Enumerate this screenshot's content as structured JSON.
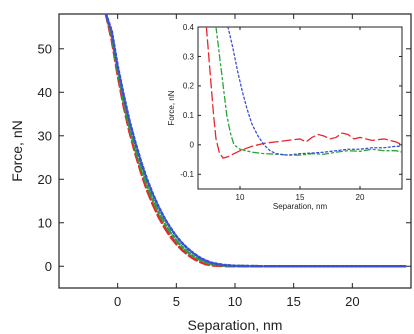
{
  "chart_data": [
    {
      "type": "line",
      "role": "main",
      "xlabel": "Separation, nm",
      "ylabel": "Force, nN",
      "xlim": [
        -5,
        25
      ],
      "ylim": [
        -5,
        58
      ],
      "xticks": [
        0,
        5,
        10,
        15,
        20
      ],
      "yticks": [
        0,
        10,
        20,
        30,
        40,
        50
      ],
      "grid": false,
      "series": [
        {
          "color": "#e8262b",
          "dash": "long-dash",
          "x": [
            -1,
            -0.5,
            0,
            0.5,
            1,
            1.5,
            2,
            2.5,
            3,
            3.5,
            4,
            4.5,
            5,
            5.5,
            6,
            6.5,
            7,
            7.5,
            8,
            9,
            10,
            12,
            15,
            18,
            21,
            24.5
          ],
          "y": [
            58,
            52,
            44,
            37,
            31,
            26,
            21.5,
            17.5,
            14.2,
            11.3,
            8.9,
            6.8,
            5.1,
            3.7,
            2.6,
            1.7,
            1.0,
            0.5,
            0.2,
            0.05,
            0.02,
            0,
            0,
            0,
            0,
            0
          ]
        },
        {
          "color": "#2ba33b",
          "dash": "dash-dot",
          "x": [
            -1,
            -0.5,
            0,
            0.5,
            1,
            1.5,
            2,
            2.5,
            3,
            3.5,
            4,
            4.5,
            5,
            5.5,
            6,
            6.5,
            7,
            7.5,
            8,
            9,
            10,
            12,
            15,
            18,
            21,
            24.5
          ],
          "y": [
            58,
            53,
            45,
            38,
            32,
            27,
            22.5,
            18.6,
            15.2,
            12.3,
            9.8,
            7.7,
            5.9,
            4.4,
            3.2,
            2.2,
            1.5,
            0.9,
            0.5,
            0.15,
            0.05,
            0,
            0,
            0,
            0,
            0
          ]
        },
        {
          "color": "#3a4fd6",
          "dash": "dotted",
          "x": [
            -1,
            -0.5,
            0,
            0.5,
            1,
            1.5,
            2,
            2.5,
            3,
            3.5,
            4,
            4.5,
            5,
            5.5,
            6,
            6.5,
            7,
            7.5,
            8,
            9,
            10,
            12,
            15,
            18,
            21,
            24.5
          ],
          "y": [
            58,
            54,
            46,
            39.5,
            33.5,
            28.5,
            24,
            20,
            16.6,
            13.6,
            11,
            8.8,
            6.9,
            5.3,
            4,
            2.9,
            2.0,
            1.3,
            0.8,
            0.3,
            0.1,
            0,
            0,
            0,
            0,
            0
          ]
        }
      ]
    },
    {
      "type": "line",
      "role": "inset",
      "xlabel": "Separation, nm",
      "ylabel": "Force, nN",
      "xlim": [
        6.5,
        23.5
      ],
      "ylim": [
        -0.15,
        0.4
      ],
      "xticks": [
        10,
        15,
        20
      ],
      "xtick_labels": [
        "10",
        "15",
        "20"
      ],
      "yticks": [
        -0.1,
        0,
        0.1,
        0.2,
        0.3,
        0.4
      ],
      "ytick_labels": [
        "-0.1",
        "0",
        "0.1",
        "0.2",
        "0.3",
        "0.4"
      ],
      "grid": false,
      "series": [
        {
          "color": "#e8262b",
          "dash": "long-dash",
          "x": [
            7.2,
            7.4,
            7.6,
            7.8,
            8.0,
            8.3,
            8.6,
            9.0,
            9.5,
            10,
            11,
            12,
            13,
            14,
            15,
            15.5,
            16,
            16.5,
            17,
            17.5,
            18,
            18.5,
            19,
            19.5,
            20,
            21,
            22,
            23,
            23.5
          ],
          "y": [
            0.4,
            0.3,
            0.2,
            0.1,
            0.02,
            -0.03,
            -0.045,
            -0.04,
            -0.03,
            -0.02,
            -0.005,
            0.005,
            0.01,
            0.015,
            0.02,
            0.01,
            0.025,
            0.035,
            0.03,
            0.02,
            0.025,
            0.04,
            0.035,
            0.02,
            0.025,
            0.015,
            0.02,
            0.01,
            0.0
          ]
        },
        {
          "color": "#2ba33b",
          "dash": "dash-dot",
          "x": [
            8.0,
            8.3,
            8.6,
            8.9,
            9.2,
            9.5,
            10,
            10.5,
            11,
            12,
            13,
            14,
            15,
            16,
            17,
            18,
            19,
            20,
            21,
            22,
            23,
            23.5
          ],
          "y": [
            0.4,
            0.3,
            0.2,
            0.1,
            0.04,
            0.0,
            -0.015,
            -0.02,
            -0.025,
            -0.03,
            -0.032,
            -0.035,
            -0.035,
            -0.03,
            -0.032,
            -0.025,
            -0.02,
            -0.022,
            -0.015,
            -0.02,
            -0.02,
            -0.025
          ]
        },
        {
          "color": "#3a4fd6",
          "dash": "dotted",
          "x": [
            9.0,
            9.4,
            9.8,
            10.2,
            10.6,
            11.0,
            11.5,
            12,
            12.5,
            13,
            14,
            15,
            16,
            17,
            18,
            19,
            20,
            21,
            22,
            23,
            23.5
          ],
          "y": [
            0.4,
            0.33,
            0.25,
            0.18,
            0.12,
            0.07,
            0.03,
            0.0,
            -0.02,
            -0.03,
            -0.035,
            -0.03,
            -0.028,
            -0.025,
            -0.02,
            -0.015,
            -0.015,
            -0.01,
            -0.01,
            -0.005,
            -0.005
          ]
        }
      ]
    }
  ]
}
